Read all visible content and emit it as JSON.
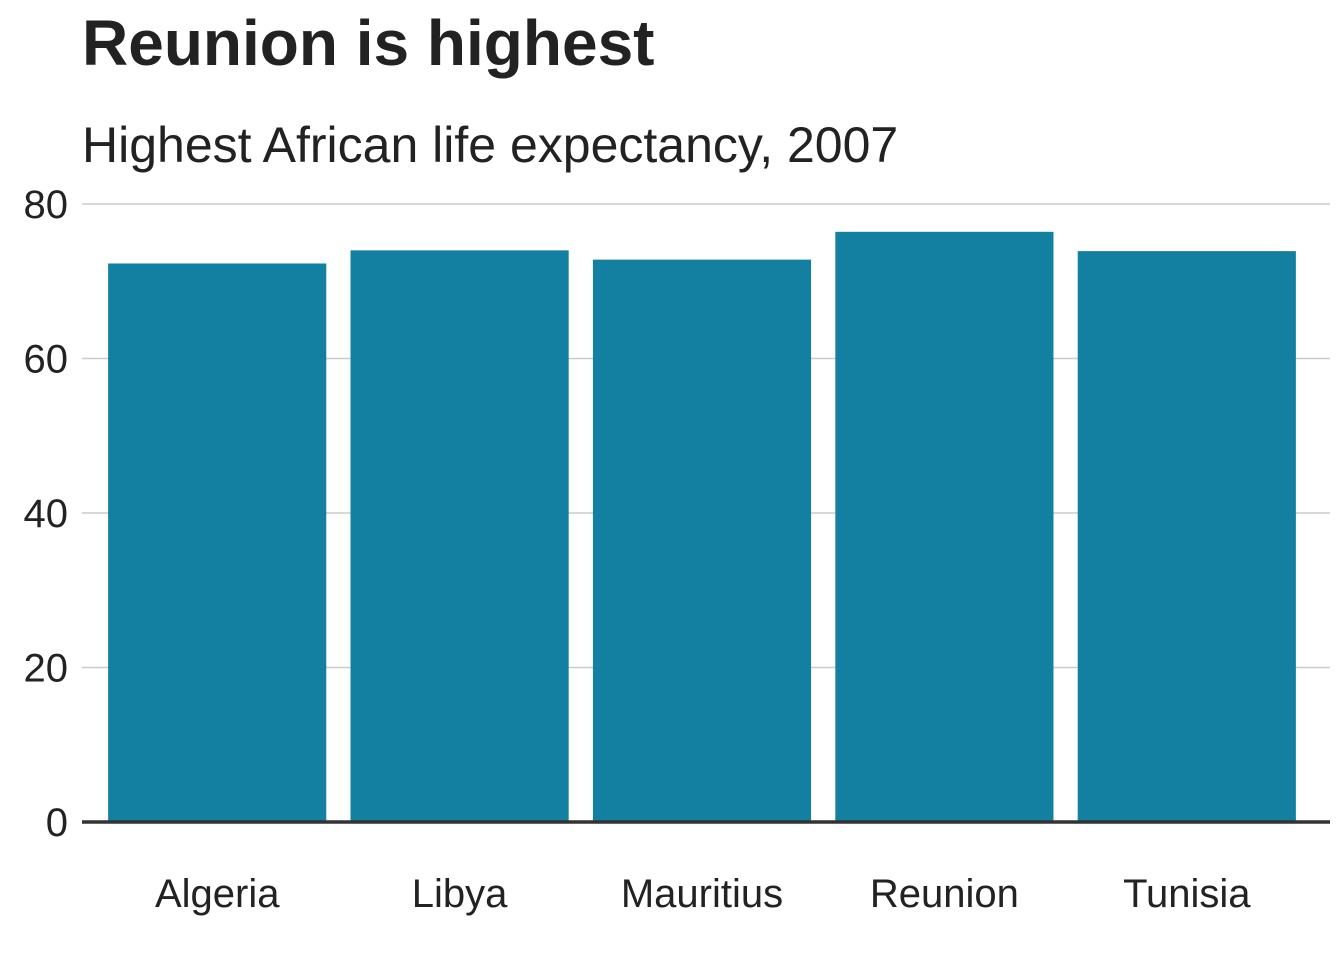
{
  "chart_data": {
    "type": "bar",
    "title": "Reunion is highest",
    "subtitle": "Highest African life expectancy, 2007",
    "categories": [
      "Algeria",
      "Libya",
      "Mauritius",
      "Reunion",
      "Tunisia"
    ],
    "values": [
      72.3,
      74.0,
      72.8,
      76.4,
      73.9
    ],
    "xlabel": "",
    "ylabel": "",
    "ylim": [
      0,
      80
    ],
    "yticks": [
      0,
      20,
      40,
      60,
      80
    ],
    "grid": "horizontal",
    "legend": "none",
    "bar_color": "#1380A1",
    "grid_color": "#cbcbcb",
    "baseline_color": "#333333"
  }
}
